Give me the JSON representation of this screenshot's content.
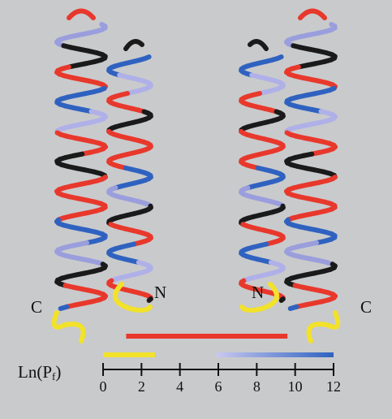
{
  "labels": {
    "c_left": "C",
    "n_left": "N",
    "n_right": "N",
    "c_right": "C"
  },
  "scale": {
    "label": "Ln(P",
    "label_sub": "f",
    "label_close": ")",
    "xlim": [
      0,
      12
    ],
    "xticks": [
      0,
      2,
      4,
      6,
      8,
      10,
      12
    ],
    "bars": [
      {
        "color": "#e8382c",
        "range": [
          1.2,
          9.6
        ]
      },
      {
        "color": "#f2e22a",
        "range": [
          0,
          2.7
        ]
      },
      {
        "colors": [
          "#c8c8f0",
          "#2f62c0"
        ],
        "range": [
          5.9,
          12
        ]
      }
    ]
  }
}
